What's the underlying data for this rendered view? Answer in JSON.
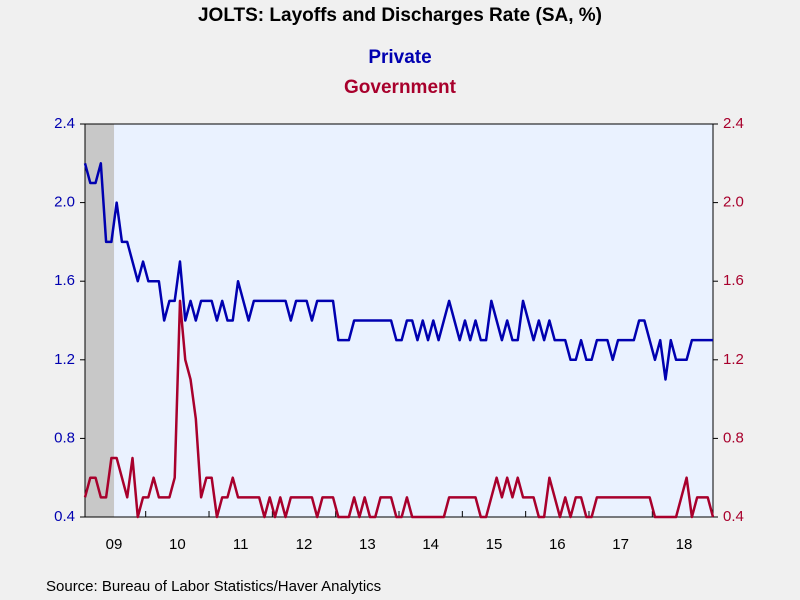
{
  "chart_data": {
    "type": "line",
    "title": "JOLTS: Layoffs and Discharges Rate (SA, %)",
    "source": "Source:  Bureau of Labor Statistics/Haver Analytics",
    "categories": [
      null,
      null,
      null,
      null,
      null,
      null,
      "09",
      null,
      null,
      null,
      null,
      null,
      null,
      null,
      null,
      null,
      null,
      null,
      "10",
      null,
      null,
      null,
      null,
      null,
      null,
      null,
      null,
      null,
      null,
      null,
      "11",
      null,
      null,
      null,
      null,
      null,
      null,
      null,
      null,
      null,
      null,
      null,
      "12",
      null,
      null,
      null,
      null,
      null,
      null,
      null,
      null,
      null,
      null,
      null,
      "13",
      null,
      null,
      null,
      null,
      null,
      null,
      null,
      null,
      null,
      null,
      null,
      "14",
      null,
      null,
      null,
      null,
      null,
      null,
      null,
      null,
      null,
      null,
      null,
      "15",
      null,
      null,
      null,
      null,
      null,
      null,
      null,
      null,
      null,
      null,
      null,
      "16",
      null,
      null,
      null,
      null,
      null,
      null,
      null,
      null,
      null,
      null,
      null,
      "17",
      null,
      null,
      null,
      null,
      null,
      null,
      null,
      null,
      null,
      null,
      null,
      "18",
      null,
      null,
      null,
      null,
      null
    ],
    "series": [
      {
        "name": "Private",
        "color": "#0000b0",
        "axis": "y",
        "values": [
          2.2,
          2.1,
          2.1,
          2.2,
          1.8,
          1.8,
          2.0,
          1.8,
          1.8,
          1.7,
          1.6,
          1.7,
          1.6,
          1.6,
          1.6,
          1.4,
          1.5,
          1.5,
          1.7,
          1.4,
          1.5,
          1.4,
          1.5,
          1.5,
          1.5,
          1.4,
          1.5,
          1.4,
          1.4,
          1.6,
          1.5,
          1.4,
          1.5,
          1.5,
          1.5,
          1.5,
          1.5,
          1.5,
          1.5,
          1.4,
          1.5,
          1.5,
          1.5,
          1.4,
          1.5,
          1.5,
          1.5,
          1.5,
          1.3,
          1.3,
          1.3,
          1.4,
          1.4,
          1.4,
          1.4,
          1.4,
          1.4,
          1.4,
          1.4,
          1.3,
          1.3,
          1.4,
          1.4,
          1.3,
          1.4,
          1.3,
          1.4,
          1.3,
          1.4,
          1.5,
          1.4,
          1.3,
          1.4,
          1.3,
          1.4,
          1.3,
          1.3,
          1.5,
          1.4,
          1.3,
          1.4,
          1.3,
          1.3,
          1.5,
          1.4,
          1.3,
          1.4,
          1.3,
          1.4,
          1.3,
          1.3,
          1.3,
          1.2,
          1.2,
          1.3,
          1.2,
          1.2,
          1.3,
          1.3,
          1.3,
          1.2,
          1.3,
          1.3,
          1.3,
          1.3,
          1.4,
          1.4,
          1.3,
          1.2,
          1.3,
          1.1,
          1.3,
          1.2,
          1.2,
          1.2,
          1.3,
          1.3,
          1.3,
          1.3,
          1.3
        ]
      },
      {
        "name": "Government",
        "color": "#a8002c",
        "axis": "y2",
        "values": [
          0.5,
          0.6,
          0.6,
          0.5,
          0.5,
          0.7,
          0.7,
          0.6,
          0.5,
          0.7,
          0.4,
          0.5,
          0.5,
          0.6,
          0.5,
          0.5,
          0.5,
          0.6,
          1.5,
          1.2,
          1.1,
          0.9,
          0.5,
          0.6,
          0.6,
          0.4,
          0.5,
          0.5,
          0.6,
          0.5,
          0.5,
          0.5,
          0.5,
          0.5,
          0.4,
          0.5,
          0.4,
          0.5,
          0.4,
          0.5,
          0.5,
          0.5,
          0.5,
          0.5,
          0.4,
          0.5,
          0.5,
          0.5,
          0.4,
          0.4,
          0.4,
          0.5,
          0.4,
          0.5,
          0.4,
          0.4,
          0.5,
          0.5,
          0.5,
          0.4,
          0.4,
          0.5,
          0.4,
          0.4,
          0.4,
          0.4,
          0.4,
          0.4,
          0.4,
          0.5,
          0.5,
          0.5,
          0.5,
          0.5,
          0.5,
          0.4,
          0.4,
          0.5,
          0.6,
          0.5,
          0.6,
          0.5,
          0.6,
          0.5,
          0.5,
          0.5,
          0.4,
          0.4,
          0.6,
          0.5,
          0.4,
          0.5,
          0.4,
          0.5,
          0.5,
          0.4,
          0.4,
          0.5,
          0.5,
          0.5,
          0.5,
          0.5,
          0.5,
          0.5,
          0.5,
          0.5,
          0.5,
          0.5,
          0.4,
          0.4,
          0.4,
          0.4,
          0.4,
          0.5,
          0.6,
          0.4,
          0.5,
          0.5,
          0.5,
          0.4
        ]
      }
    ],
    "ylim": [
      0.4,
      2.4
    ],
    "yticks": [
      0.4,
      0.8,
      1.2,
      1.6,
      {
        "value": 2,
        "label": "2.0"
      },
      2.4
    ],
    "y2lim": [
      0.4,
      2.4
    ],
    "y2ticks": [
      0.4,
      0.8,
      1.2,
      1.6,
      {
        "value": 2,
        "label": "2.0"
      },
      2.4
    ],
    "grid": false
  }
}
